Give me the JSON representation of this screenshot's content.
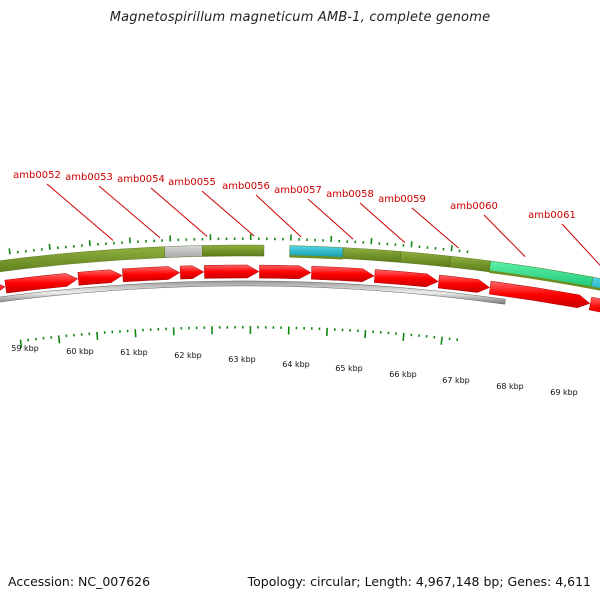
{
  "title": "Magnetospirillum magneticum AMB-1, complete genome",
  "footer": {
    "accession": "Accession: NC_007626",
    "summary": "Topology: circular; Length: 4,967,148 bp; Genes: 4,611"
  },
  "scale_labels": [
    "59 kbp",
    "60 kbp",
    "61 kbp",
    "62 kbp",
    "63 kbp",
    "64 kbp",
    "65 kbp",
    "66 kbp",
    "67 kbp",
    "68 kbp",
    "69 kbp"
  ],
  "gene_labels": [
    "amb0052",
    "amb0053",
    "amb0054",
    "amb0055",
    "amb0056",
    "amb0057",
    "amb0058",
    "amb0059",
    "amb0060",
    "amb0061"
  ],
  "colors": {
    "label_red": "#cc0000",
    "cds_arrow": "#ff0000",
    "olive": "#6e8e22",
    "grey": "#c0c0c0",
    "cyan": "#19b2c6",
    "mint": "#33e58c",
    "tick": "#118811",
    "backbone": "#777777"
  }
}
